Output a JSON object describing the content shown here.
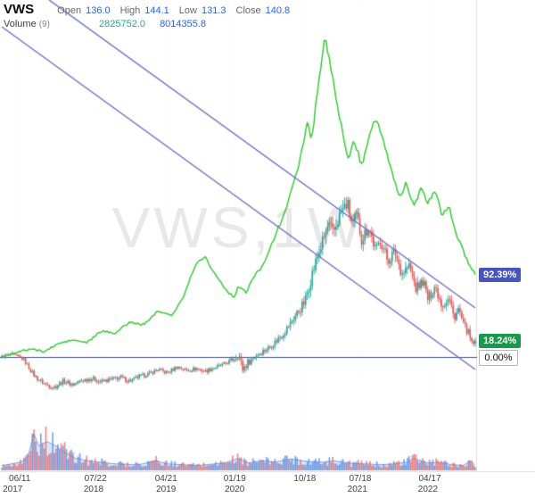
{
  "header": {
    "symbol": "VWS",
    "ohlc": [
      {
        "label": "Open",
        "value": "136.0"
      },
      {
        "label": "High",
        "value": "144.1"
      },
      {
        "label": "Low",
        "value": "131.3"
      },
      {
        "label": "Close",
        "value": "140.8"
      }
    ],
    "indicator": {
      "label": "Volume",
      "param": "(9)",
      "values": [
        "2825752.0",
        "8014355.8"
      ]
    }
  },
  "watermark": "VWS,1W",
  "axis": {
    "x_ticks": [
      {
        "label": "06/11",
        "t": 0.038
      },
      {
        "label": "07/22",
        "t": 0.198
      },
      {
        "label": "04/21",
        "t": 0.347
      },
      {
        "label": "01/19",
        "t": 0.492
      },
      {
        "label": "10/18",
        "t": 0.64
      },
      {
        "label": "07/18",
        "t": 0.757
      },
      {
        "label": "04/17",
        "t": 0.904
      }
    ],
    "x_years": [
      {
        "label": "2017",
        "t": 0.023
      },
      {
        "label": "2018",
        "t": 0.194
      },
      {
        "label": "2019",
        "t": 0.347
      },
      {
        "label": "2020",
        "t": 0.492
      },
      {
        "label": "2021",
        "t": 0.751
      },
      {
        "label": "2022",
        "t": 0.9
      }
    ],
    "right_labels": [
      {
        "text": "92.39%",
        "pct": 92.39,
        "bg": "#4553c8",
        "fg": "#ffffff"
      },
      {
        "text": "18.24%",
        "pct": 18.24,
        "bg": "#159a4a",
        "fg": "#ffffff"
      },
      {
        "text": "0.00%",
        "pct": 0,
        "bg": "#ffffff",
        "fg": "#111111",
        "border": "#b5b5b5"
      }
    ]
  },
  "chart_data": {
    "type": "candlestick+line",
    "symbol": "VWS",
    "timeframe": "1W",
    "y_unit": "percent_change",
    "x_range": [
      "2017-01",
      "2022-06"
    ],
    "ylim_pct": [
      -55,
      400
    ],
    "current_bar": {
      "open": 136.0,
      "high": 144.1,
      "low": 131.3,
      "close": 140.8,
      "volume": 2825752.0,
      "volume_ma9": 8014355.8
    },
    "last_values": {
      "candles_pct": 18.24,
      "compare_pct": 92.39,
      "baseline_pct": 0.0
    },
    "candle_close_keyframes": [
      [
        0,
        0
      ],
      [
        0.02,
        3
      ],
      [
        0.045,
        -2
      ],
      [
        0.07,
        -22
      ],
      [
        0.09,
        -30
      ],
      [
        0.11,
        -34
      ],
      [
        0.13,
        -27
      ],
      [
        0.15,
        -31
      ],
      [
        0.17,
        -26
      ],
      [
        0.19,
        -24
      ],
      [
        0.21,
        -28
      ],
      [
        0.23,
        -25
      ],
      [
        0.25,
        -23
      ],
      [
        0.27,
        -27
      ],
      [
        0.29,
        -22
      ],
      [
        0.31,
        -19
      ],
      [
        0.33,
        -14
      ],
      [
        0.35,
        -18
      ],
      [
        0.37,
        -11
      ],
      [
        0.39,
        -15
      ],
      [
        0.41,
        -13
      ],
      [
        0.43,
        -16
      ],
      [
        0.45,
        -12
      ],
      [
        0.47,
        -8
      ],
      [
        0.49,
        -2
      ],
      [
        0.5,
        4
      ],
      [
        0.508,
        -14
      ],
      [
        0.52,
        -6
      ],
      [
        0.54,
        3
      ],
      [
        0.56,
        9
      ],
      [
        0.58,
        18
      ],
      [
        0.6,
        30
      ],
      [
        0.62,
        46
      ],
      [
        0.64,
        62
      ],
      [
        0.655,
        92
      ],
      [
        0.67,
        118
      ],
      [
        0.69,
        148
      ],
      [
        0.7,
        138
      ],
      [
        0.715,
        162
      ],
      [
        0.73,
        172
      ],
      [
        0.74,
        148
      ],
      [
        0.75,
        158
      ],
      [
        0.76,
        132
      ],
      [
        0.775,
        146
      ],
      [
        0.79,
        118
      ],
      [
        0.8,
        132
      ],
      [
        0.815,
        108
      ],
      [
        0.83,
        118
      ],
      [
        0.845,
        94
      ],
      [
        0.86,
        102
      ],
      [
        0.875,
        76
      ],
      [
        0.89,
        86
      ],
      [
        0.9,
        64
      ],
      [
        0.915,
        80
      ],
      [
        0.93,
        58
      ],
      [
        0.945,
        66
      ],
      [
        0.955,
        44
      ],
      [
        0.965,
        54
      ],
      [
        0.975,
        36
      ],
      [
        0.985,
        28
      ],
      [
        0.993,
        14
      ],
      [
        1,
        18.24
      ]
    ],
    "compare_line_keyframes": [
      [
        0,
        0
      ],
      [
        0.03,
        5
      ],
      [
        0.06,
        9
      ],
      [
        0.09,
        6
      ],
      [
        0.12,
        15
      ],
      [
        0.15,
        19
      ],
      [
        0.18,
        16
      ],
      [
        0.21,
        29
      ],
      [
        0.24,
        27
      ],
      [
        0.27,
        39
      ],
      [
        0.3,
        36
      ],
      [
        0.33,
        52
      ],
      [
        0.36,
        47
      ],
      [
        0.385,
        68
      ],
      [
        0.4,
        92
      ],
      [
        0.415,
        108
      ],
      [
        0.43,
        112
      ],
      [
        0.445,
        97
      ],
      [
        0.46,
        86
      ],
      [
        0.475,
        74
      ],
      [
        0.49,
        67
      ],
      [
        0.5,
        80
      ],
      [
        0.515,
        71
      ],
      [
        0.53,
        88
      ],
      [
        0.55,
        102
      ],
      [
        0.57,
        126
      ],
      [
        0.59,
        152
      ],
      [
        0.61,
        182
      ],
      [
        0.63,
        222
      ],
      [
        0.645,
        262
      ],
      [
        0.655,
        244
      ],
      [
        0.665,
        292
      ],
      [
        0.675,
        330
      ],
      [
        0.683,
        360
      ],
      [
        0.69,
        338
      ],
      [
        0.7,
        308
      ],
      [
        0.71,
        282
      ],
      [
        0.72,
        248
      ],
      [
        0.73,
        222
      ],
      [
        0.745,
        242
      ],
      [
        0.76,
        214
      ],
      [
        0.775,
        248
      ],
      [
        0.79,
        268
      ],
      [
        0.8,
        252
      ],
      [
        0.81,
        232
      ],
      [
        0.825,
        206
      ],
      [
        0.84,
        178
      ],
      [
        0.855,
        196
      ],
      [
        0.87,
        168
      ],
      [
        0.885,
        188
      ],
      [
        0.9,
        172
      ],
      [
        0.915,
        188
      ],
      [
        0.93,
        158
      ],
      [
        0.945,
        168
      ],
      [
        0.96,
        138
      ],
      [
        0.975,
        118
      ],
      [
        0.99,
        100
      ],
      [
        1,
        92.39
      ]
    ],
    "volatility_keyframes": [
      [
        0,
        3
      ],
      [
        0.1,
        5
      ],
      [
        0.2,
        4.5
      ],
      [
        0.3,
        4
      ],
      [
        0.4,
        4
      ],
      [
        0.48,
        4
      ],
      [
        0.505,
        11
      ],
      [
        0.53,
        6
      ],
      [
        0.58,
        7
      ],
      [
        0.62,
        9
      ],
      [
        0.66,
        13
      ],
      [
        0.7,
        15
      ],
      [
        0.75,
        14
      ],
      [
        0.8,
        13
      ],
      [
        0.85,
        12
      ],
      [
        0.9,
        11
      ],
      [
        0.95,
        9
      ],
      [
        1,
        7
      ]
    ],
    "volume_keyframes": [
      [
        0,
        6
      ],
      [
        0.04,
        10
      ],
      [
        0.055,
        16
      ],
      [
        0.068,
        46
      ],
      [
        0.078,
        30
      ],
      [
        0.095,
        36
      ],
      [
        0.115,
        30
      ],
      [
        0.135,
        22
      ],
      [
        0.155,
        15
      ],
      [
        0.19,
        11
      ],
      [
        0.24,
        8
      ],
      [
        0.29,
        7
      ],
      [
        0.325,
        12
      ],
      [
        0.35,
        8
      ],
      [
        0.41,
        6
      ],
      [
        0.47,
        9
      ],
      [
        0.5,
        15
      ],
      [
        0.52,
        9
      ],
      [
        0.55,
        12
      ],
      [
        0.575,
        10
      ],
      [
        0.61,
        14
      ],
      [
        0.645,
        11
      ],
      [
        0.68,
        10
      ],
      [
        0.7,
        12
      ],
      [
        0.73,
        9
      ],
      [
        0.77,
        8
      ],
      [
        0.8,
        7
      ],
      [
        0.83,
        8
      ],
      [
        0.855,
        10
      ],
      [
        0.87,
        15
      ],
      [
        0.885,
        12
      ],
      [
        0.9,
        9
      ],
      [
        0.925,
        10
      ],
      [
        0.95,
        7
      ],
      [
        0.975,
        6
      ],
      [
        0.99,
        12
      ],
      [
        1,
        6
      ]
    ],
    "trendlines": [
      {
        "t1": 0.0998,
        "pct1": 400,
        "t2": 1.0,
        "pct2": 55
      },
      {
        "t1": 0.0,
        "pct1": 370,
        "t2": 1.0,
        "pct2": -14
      }
    ],
    "horizontal_baseline_pct": 0
  },
  "colors": {
    "candle_up": "#26a69a",
    "candle_down": "#ef5350",
    "compare_line": "#33cc33",
    "trendline": "#6a6fc9",
    "baseline": "#414c9c",
    "volume_bar_up": "rgba(95,150,232,0.9)",
    "volume_bar_down": "rgba(235,100,95,0.8)",
    "volume_area_fill": "rgba(74,134,219,0.20)",
    "volume_area_stroke": "rgba(74,134,219,0.75)",
    "grid": "rgba(0,0,0,0.07)",
    "axis_border": "#dcdcdc"
  }
}
